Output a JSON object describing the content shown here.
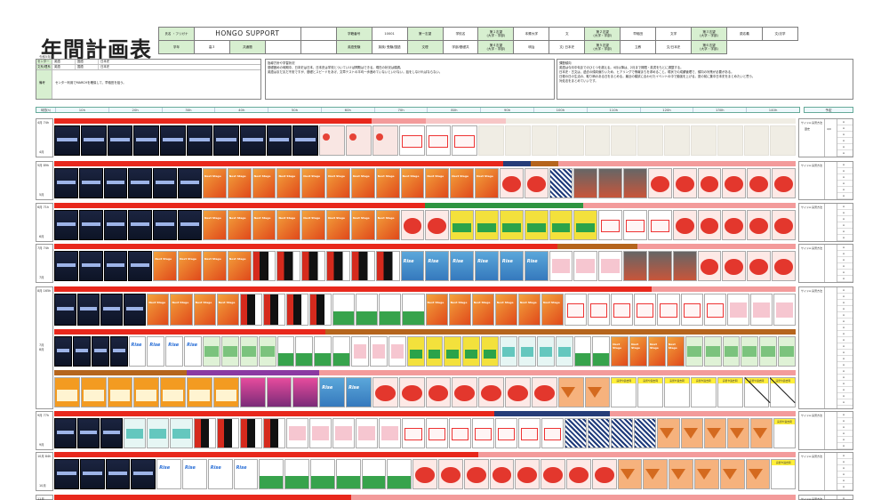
{
  "doc": {
    "title": "年間計画表",
    "subtitle": "令和5年度",
    "header": [
      [
        {
          "k": "氏名 ・フリガナ",
          "g": true
        },
        {
          "k": "HONGO SUPPORT",
          "big": true,
          "span": 3
        },
        {
          "k": "",
          "span": 1
        },
        {
          "k": "学籍番号",
          "g": true
        },
        {
          "k": "10001"
        },
        {
          "k": "第一志望",
          "g": true
        },
        {
          "k": "学校名"
        },
        {
          "k": "第１志望\n(大学・学部)",
          "g": true
        },
        {
          "k": "本郷大学"
        },
        {
          "k": "文"
        },
        {
          "k": "第２志望\n(大学・学部)",
          "g": true
        },
        {
          "k": "早稲田"
        },
        {
          "k": "文学"
        },
        {
          "k": "第３志望\n(大学・学部)",
          "g": true
        },
        {
          "k": "慶応義"
        },
        {
          "k": "文/法学"
        }
      ],
      [
        {
          "k": "学年",
          "g": true
        },
        {
          "k": "高３"
        },
        {
          "k": "共通題",
          "g": true
        },
        {
          "k": ""
        },
        {
          "k": ""
        },
        {
          "k": "英語受験",
          "g": true
        },
        {
          "k": "英検/ 受験/国語"
        },
        {
          "k": "文理",
          "g": true
        },
        {
          "k": "学部/基礎共"
        },
        {
          "k": "第４志望\n(大学・学部)",
          "g": true
        },
        {
          "k": "明治"
        },
        {
          "k": "文/ 日本史"
        },
        {
          "k": "第５志望\n(大学・学部)",
          "g": true
        },
        {
          "k": "立教"
        },
        {
          "k": "文/日本史"
        },
        {
          "k": "第６志望\n(大学・学部)",
          "g": true
        }
      ]
    ],
    "box1": {
      "rows": [
        {
          "label": "センター",
          "v1": "英語",
          "v2": "国語",
          "v3": "日本史"
        },
        {
          "label": "文系/理系",
          "v1": "英語",
          "v2": "国語",
          "v3": "日本史"
        }
      ],
      "row3_label": "備考",
      "row3_text": "センター利用でMARCHを確保して、早稲田を狙う。"
    },
    "box2": {
      "title": "指導方針や学習状況",
      "lines": [
        "基礎固めの時期中、日本史は日本、日本史は学校とついていけば問題はできる。現在の状況は順調。",
        "英語はまだまだ不安ですが、基礎とスピードをあげ、文章テストの平均一歩進めていないといけない。話をしなければならない。"
      ]
    },
    "box3": {
      "title": "課題傾向",
      "lines": [
        "英語は今月中旬までのひとつを超える。4月以降は、2月まで期限・英書をもとに調整する。",
        "日本史・古文は、過去の傾向偏りいため、ヒアリングで情報まちを求めること。現状での成績管理で、傾向の対策が必要がある。",
        "日程の日の生活の、取り柄のある日をまとめる。最近の模試に合わせたイベントの中で勉強を上げる。夏の前に集中日本史をまとめたいと思う。",
        "対処法をまとめていいです。"
      ]
    },
    "ruler": {
      "first": "時間(h)",
      "ticks": [
        "10h",
        "20h",
        "30h",
        "40h",
        "50h",
        "60h",
        "70h",
        "80h",
        "90h",
        "100h",
        "110h",
        "120h",
        "130h",
        "140h"
      ]
    },
    "rhead": "予定",
    "months": [
      {
        "hours": "4月 74h",
        "label": "4月"
      },
      {
        "hours": "5月 89h",
        "label": "5月"
      },
      {
        "hours": "6月 71h",
        "label": "6月"
      },
      {
        "hours": "7月 74h",
        "label": "7月"
      },
      {
        "hours": "8月 165h",
        "label": "7月\n8月"
      },
      {
        "hours": "9月 77h",
        "label": "9月"
      },
      {
        "hours": "10月 84h",
        "label": "10月"
      },
      {
        "hours": "11月",
        "label": ""
      }
    ],
    "right_col": {
      "r1_a": "サイドA:演習方法",
      "r1_b": "",
      "r1_a2": "歴史",
      "r1_b2": "4/0",
      "marks": [
        "A",
        "A",
        "A",
        "A",
        "A",
        "A",
        "A",
        "A",
        "A",
        "A"
      ],
      "rows_a": "サイドA:演習方法"
    },
    "yellow_label": "演習や過去問"
  },
  "colors": {
    "red": "#e8281c",
    "pink": "#f39b9b",
    "lightpink": "#f7c6c6",
    "brown": "#b5651d",
    "navybar": "#263d78",
    "greenbar": "#2e9440",
    "purple": "#8b3aa2",
    "header_green": "#d7efd0"
  }
}
